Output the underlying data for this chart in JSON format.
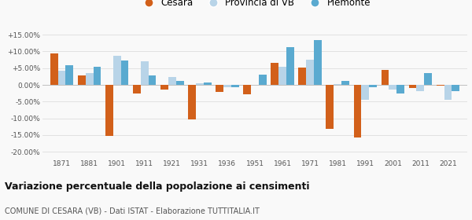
{
  "years": [
    1871,
    1881,
    1901,
    1911,
    1921,
    1931,
    1936,
    1951,
    1961,
    1971,
    1981,
    1991,
    2001,
    2011,
    2021
  ],
  "cesara": [
    9.5,
    2.8,
    -15.2,
    -2.5,
    -1.5,
    -10.4,
    -2.2,
    -2.8,
    6.5,
    5.1,
    -13.2,
    -15.7,
    4.5,
    -1.0,
    -0.2
  ],
  "provincia_vb": [
    4.2,
    3.5,
    8.7,
    7.1,
    2.3,
    0.5,
    -0.6,
    0.0,
    5.3,
    7.5,
    0.3,
    -4.5,
    -1.5,
    -1.8,
    -4.5
  ],
  "piemonte": [
    6.0,
    5.5,
    7.4,
    2.9,
    1.1,
    0.7,
    -0.8,
    3.0,
    11.2,
    13.3,
    1.2,
    -0.7,
    -2.5,
    3.5,
    -1.8
  ],
  "cesara_color": "#d2601a",
  "provincia_color": "#b8d4e8",
  "piemonte_color": "#5aaad0",
  "title": "Variazione percentuale della popolazione ai censimenti",
  "subtitle": "COMUNE DI CESARA (VB) - Dati ISTAT - Elaborazione TUTTITALIA.IT",
  "ytick_vals": [
    -20.0,
    -15.0,
    -10.0,
    -5.0,
    0.0,
    5.0,
    10.0,
    15.0
  ],
  "ylim": [
    -22.0,
    17.5
  ],
  "bar_width": 0.28,
  "background_color": "#f9f9f9",
  "grid_color": "#dddddd",
  "legend_labels": [
    "Cesara",
    "Provincia di VB",
    "Piemonte"
  ]
}
